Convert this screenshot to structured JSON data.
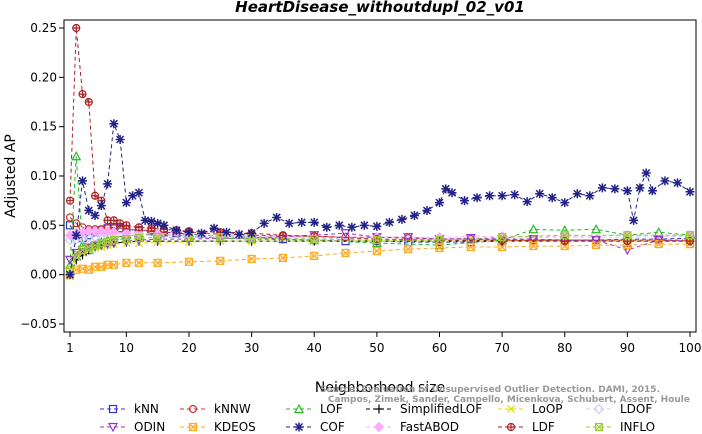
{
  "chart_data": {
    "type": "line",
    "title": "HeartDisease_withoutdupl_02_v01",
    "xlabel": "Neighborhood size",
    "ylabel": "Adjusted AP",
    "xlim": [
      1,
      100
    ],
    "ylim": [
      -0.05,
      0.25
    ],
    "x_ticks": [
      1,
      10,
      20,
      30,
      40,
      50,
      60,
      70,
      80,
      90,
      100
    ],
    "y_ticks": [
      -0.05,
      0.0,
      0.05,
      0.1,
      0.15,
      0.2,
      0.25
    ],
    "x_tick_labels": [
      "1",
      "10",
      "20",
      "30",
      "40",
      "50",
      "60",
      "70",
      "80",
      "90",
      "100"
    ],
    "y_tick_labels": [
      "−0.05",
      "0.00",
      "0.05",
      "0.10",
      "0.15",
      "0.20",
      "0.25"
    ],
    "grid": false,
    "legend_position": "bottom",
    "watermark": "Source: Evaluation of Unsupervised Outlier Detection. DAMI, 2015.",
    "watermark_line2": "Campos, Zimek, Sander, Campello, Micenkova, Schubert, Assent, Houle",
    "series": [
      {
        "name": "kNN",
        "color": "#3333cc",
        "marker": "square",
        "x": [
          1,
          2,
          3,
          4,
          5,
          6,
          7,
          8,
          9,
          10,
          12,
          14,
          16,
          18,
          20,
          25,
          30,
          35,
          40,
          45,
          50,
          55,
          60,
          65,
          70,
          75,
          80,
          85,
          90,
          95,
          100
        ],
        "y": [
          0.05,
          0.04,
          0.037,
          0.04,
          0.043,
          0.045,
          0.047,
          0.048,
          0.047,
          0.046,
          0.045,
          0.044,
          0.043,
          0.042,
          0.041,
          0.039,
          0.038,
          0.036,
          0.035,
          0.034,
          0.034,
          0.033,
          0.033,
          0.033,
          0.034,
          0.035,
          0.035,
          0.035,
          0.036,
          0.036,
          0.037
        ]
      },
      {
        "name": "kNNW",
        "color": "#cc3333",
        "marker": "circle",
        "x": [
          1,
          2,
          3,
          4,
          5,
          6,
          7,
          8,
          9,
          10,
          12,
          14,
          16,
          18,
          20,
          25,
          30,
          35,
          40,
          45,
          50,
          55,
          60,
          65,
          70,
          75,
          80,
          85,
          90,
          95,
          100
        ],
        "y": [
          0.058,
          0.052,
          0.048,
          0.046,
          0.046,
          0.046,
          0.047,
          0.047,
          0.046,
          0.046,
          0.045,
          0.045,
          0.044,
          0.043,
          0.043,
          0.041,
          0.04,
          0.039,
          0.039,
          0.038,
          0.038,
          0.037,
          0.036,
          0.036,
          0.035,
          0.035,
          0.035,
          0.035,
          0.035,
          0.035,
          0.035
        ]
      },
      {
        "name": "LOF",
        "color": "#22bb22",
        "marker": "triangle",
        "x": [
          1,
          2,
          3,
          4,
          5,
          6,
          7,
          8,
          10,
          12,
          15,
          20,
          25,
          30,
          40,
          50,
          60,
          70,
          75,
          80,
          85,
          90,
          95,
          100
        ],
        "y": [
          0.01,
          0.12,
          0.03,
          0.025,
          0.03,
          0.033,
          0.035,
          0.037,
          0.04,
          0.04,
          0.041,
          0.039,
          0.037,
          0.036,
          0.035,
          0.032,
          0.03,
          0.035,
          0.046,
          0.045,
          0.046,
          0.04,
          0.043,
          0.04
        ]
      },
      {
        "name": "SimplifiedLOF",
        "color": "#000000",
        "marker": "plus",
        "x": [
          1,
          2,
          3,
          4,
          5,
          6,
          7,
          8,
          10,
          12,
          15,
          20,
          25,
          30,
          40,
          50,
          60,
          70,
          80,
          90,
          100
        ],
        "y": [
          0.0,
          0.015,
          0.02,
          0.025,
          0.028,
          0.03,
          0.031,
          0.032,
          0.033,
          0.034,
          0.034,
          0.034,
          0.034,
          0.034,
          0.034,
          0.034,
          0.034,
          0.034,
          0.034,
          0.034,
          0.034
        ]
      },
      {
        "name": "LoOP",
        "color": "#dddd00",
        "marker": "x",
        "x": [
          1,
          2,
          3,
          4,
          5,
          6,
          7,
          8,
          10,
          12,
          15,
          20,
          25,
          30,
          40,
          50,
          60,
          70,
          80,
          90,
          100
        ],
        "y": [
          -0.002,
          0.018,
          0.022,
          0.025,
          0.027,
          0.028,
          0.03,
          0.031,
          0.032,
          0.032,
          0.033,
          0.033,
          0.034,
          0.034,
          0.034,
          0.034,
          0.034,
          0.034,
          0.034,
          0.034,
          0.034
        ]
      },
      {
        "name": "LDOF",
        "color": "#ccccff",
        "marker": "diamond",
        "x": [
          1,
          2,
          3,
          4,
          5,
          6,
          7,
          8,
          10,
          12,
          15,
          20,
          25,
          30,
          40,
          50,
          60,
          70,
          80,
          90,
          100
        ],
        "y": [
          0.035,
          0.036,
          0.037,
          0.038,
          0.038,
          0.039,
          0.039,
          0.04,
          0.04,
          0.04,
          0.04,
          0.039,
          0.039,
          0.038,
          0.037,
          0.036,
          0.036,
          0.037,
          0.038,
          0.038,
          0.039
        ]
      },
      {
        "name": "ODIN",
        "color": "#9933cc",
        "marker": "triangle-down",
        "x": [
          1,
          2,
          3,
          4,
          5,
          6,
          7,
          8,
          10,
          12,
          15,
          20,
          25,
          30,
          40,
          45,
          50,
          55,
          60,
          65,
          70,
          75,
          80,
          85,
          90,
          95,
          100
        ],
        "y": [
          0.015,
          0.022,
          0.025,
          0.027,
          0.029,
          0.03,
          0.031,
          0.032,
          0.034,
          0.035,
          0.036,
          0.036,
          0.037,
          0.037,
          0.04,
          0.042,
          0.038,
          0.038,
          0.036,
          0.037,
          0.036,
          0.036,
          0.035,
          0.035,
          0.025,
          0.035,
          0.034
        ]
      },
      {
        "name": "KDEOS",
        "color": "#ffaa22",
        "marker": "square-x",
        "x": [
          1,
          2,
          3,
          4,
          5,
          6,
          7,
          8,
          10,
          12,
          15,
          20,
          25,
          30,
          35,
          40,
          45,
          50,
          55,
          60,
          65,
          70,
          75,
          80,
          85,
          90,
          95,
          100
        ],
        "y": [
          0.0,
          0.005,
          0.006,
          0.005,
          0.008,
          0.008,
          0.01,
          0.01,
          0.012,
          0.012,
          0.012,
          0.013,
          0.014,
          0.016,
          0.017,
          0.019,
          0.022,
          0.024,
          0.026,
          0.027,
          0.028,
          0.028,
          0.029,
          0.029,
          0.03,
          0.03,
          0.031,
          0.031
        ]
      },
      {
        "name": "COF",
        "color": "#222288",
        "marker": "asterisk",
        "x": [
          1,
          2,
          3,
          4,
          5,
          6,
          7,
          8,
          9,
          10,
          11,
          12,
          13,
          14,
          15,
          16,
          18,
          20,
          22,
          24,
          26,
          28,
          30,
          32,
          34,
          36,
          38,
          40,
          42,
          44,
          46,
          48,
          50,
          52,
          54,
          56,
          58,
          60,
          61,
          62,
          64,
          66,
          68,
          70,
          72,
          74,
          76,
          78,
          80,
          82,
          84,
          86,
          88,
          90,
          91,
          92,
          93,
          94,
          96,
          98,
          100
        ],
        "y": [
          0.0,
          0.04,
          0.095,
          0.065,
          0.06,
          0.07,
          0.092,
          0.153,
          0.137,
          0.073,
          0.08,
          0.083,
          0.055,
          0.054,
          0.052,
          0.05,
          0.045,
          0.043,
          0.042,
          0.047,
          0.043,
          0.041,
          0.042,
          0.052,
          0.058,
          0.052,
          0.053,
          0.053,
          0.048,
          0.05,
          0.048,
          0.05,
          0.049,
          0.053,
          0.056,
          0.06,
          0.065,
          0.073,
          0.087,
          0.083,
          0.075,
          0.078,
          0.08,
          0.08,
          0.081,
          0.074,
          0.082,
          0.078,
          0.073,
          0.082,
          0.08,
          0.088,
          0.087,
          0.085,
          0.055,
          0.088,
          0.103,
          0.085,
          0.095,
          0.093,
          0.084
        ]
      },
      {
        "name": "FastABOD",
        "color": "#ffaaff",
        "marker": "diamond-filled",
        "x": [
          1,
          2,
          3,
          4,
          5,
          6,
          7,
          8,
          10,
          12,
          15,
          20,
          25,
          30,
          40,
          50,
          60,
          70,
          80,
          90,
          100
        ],
        "y": [
          0.04,
          0.042,
          0.043,
          0.044,
          0.044,
          0.044,
          0.044,
          0.043,
          0.042,
          0.042,
          0.041,
          0.04,
          0.04,
          0.039,
          0.038,
          0.038,
          0.038,
          0.039,
          0.039,
          0.04,
          0.04
        ]
      },
      {
        "name": "LDF",
        "color": "#aa2222",
        "marker": "circle-plus",
        "x": [
          1,
          2,
          3,
          4,
          5,
          6,
          7,
          8,
          9,
          10,
          12,
          14,
          16,
          18,
          20,
          25,
          30,
          35,
          40,
          50,
          60,
          70,
          80,
          90,
          100
        ],
        "y": [
          0.075,
          0.25,
          0.183,
          0.175,
          0.08,
          0.075,
          0.055,
          0.055,
          0.052,
          0.05,
          0.048,
          0.047,
          0.046,
          0.045,
          0.044,
          0.043,
          0.042,
          0.04,
          0.039,
          0.036,
          0.035,
          0.035,
          0.034,
          0.034,
          0.034
        ]
      },
      {
        "name": "INFLO",
        "color": "#99cc33",
        "marker": "square-x",
        "x": [
          1,
          2,
          3,
          4,
          5,
          6,
          7,
          8,
          10,
          12,
          15,
          20,
          25,
          30,
          40,
          50,
          60,
          70,
          80,
          90,
          100
        ],
        "y": [
          0.005,
          0.02,
          0.025,
          0.028,
          0.03,
          0.032,
          0.033,
          0.035,
          0.036,
          0.037,
          0.038,
          0.038,
          0.038,
          0.037,
          0.036,
          0.035,
          0.035,
          0.038,
          0.04,
          0.04,
          0.04
        ]
      }
    ]
  }
}
